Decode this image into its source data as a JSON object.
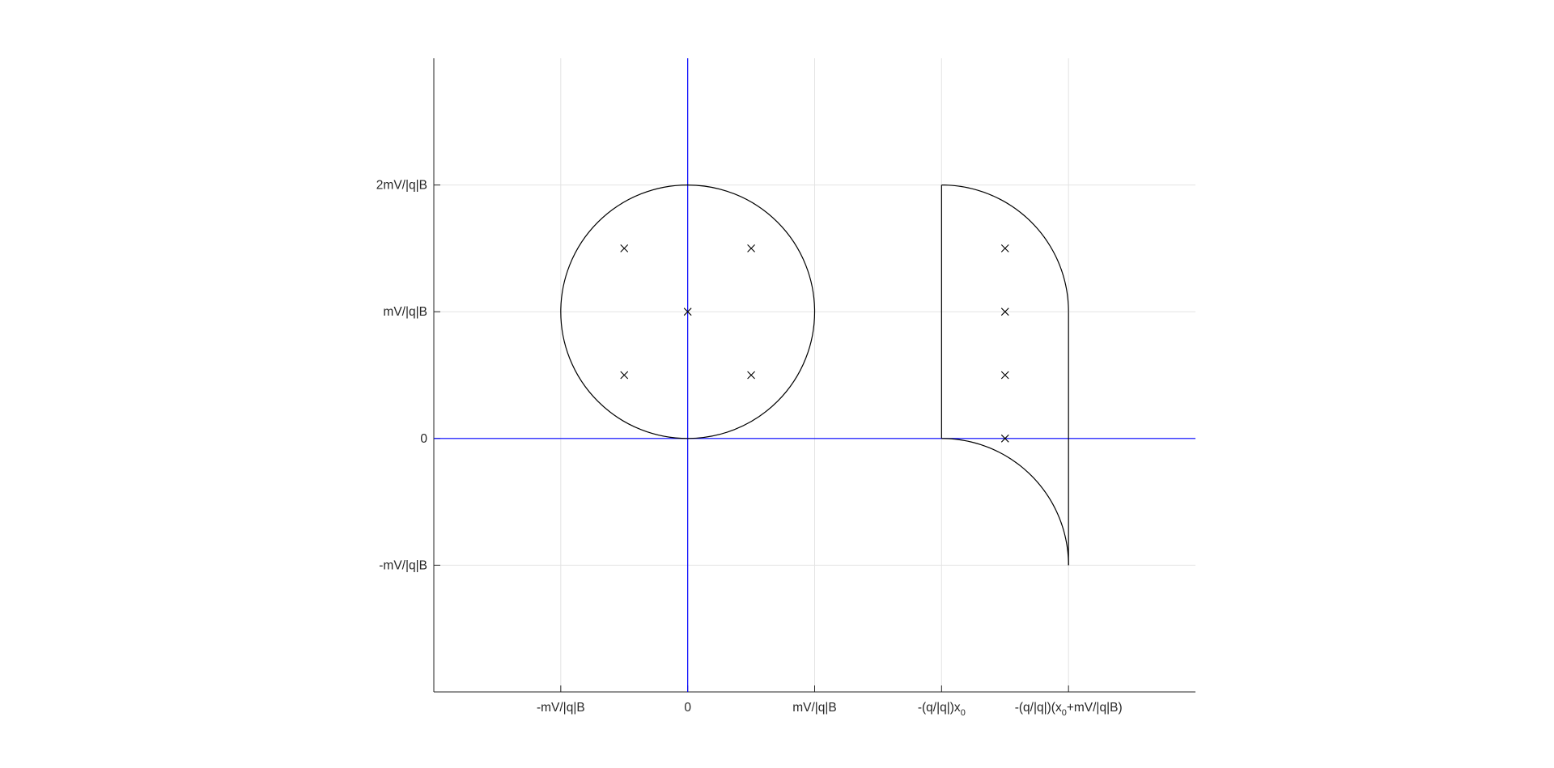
{
  "chart_data": {
    "type": "line",
    "title": "",
    "xlabel": "",
    "ylabel": "",
    "units": "mV/|q|B",
    "xlim": [
      -2,
      4
    ],
    "ylim": [
      -2,
      3
    ],
    "grid": true,
    "x_ticks": [
      {
        "value": -1,
        "label": "-mV/|q|B"
      },
      {
        "value": 0,
        "label": "0"
      },
      {
        "value": 1,
        "label": "mV/|q|B"
      },
      {
        "value": 2,
        "label": "-(q/|q|)x",
        "sub": "0",
        "tail": ""
      },
      {
        "value": 3,
        "label": "-(q/|q|)(x",
        "sub": "0",
        "tail": "+mV/|q|B)"
      }
    ],
    "y_ticks": [
      {
        "value": -1,
        "label": "-mV/|q|B"
      },
      {
        "value": 0,
        "label": "0"
      },
      {
        "value": 1,
        "label": "mV/|q|B"
      },
      {
        "value": 2,
        "label": "2mV/|q|B"
      }
    ],
    "axes_lines": {
      "color": "#0000ff",
      "x_axis_y": 0,
      "y_axis_x": 0
    },
    "shapes": [
      {
        "kind": "circle",
        "cx": 0,
        "cy": 1,
        "r": 1,
        "color": "#000000"
      },
      {
        "kind": "line",
        "points": [
          [
            2,
            0
          ],
          [
            2,
            2
          ]
        ],
        "color": "#000000"
      },
      {
        "kind": "arc",
        "cx": 2,
        "cy": 1,
        "r": 1,
        "from_deg": 90,
        "to_deg": 0,
        "color": "#000000"
      },
      {
        "kind": "line",
        "points": [
          [
            3,
            1
          ],
          [
            3,
            -1
          ]
        ],
        "color": "#000000"
      },
      {
        "kind": "arc",
        "cx": 2,
        "cy": -1,
        "r": 1,
        "from_deg": 90,
        "to_deg": 0,
        "color": "#000000"
      }
    ],
    "markers": {
      "symbol": "x",
      "color": "#000000",
      "points": [
        [
          -0.5,
          1.5
        ],
        [
          0.5,
          1.5
        ],
        [
          0,
          1
        ],
        [
          -0.5,
          0.5
        ],
        [
          0.5,
          0.5
        ],
        [
          2.5,
          1.5
        ],
        [
          2.5,
          1
        ],
        [
          2.5,
          0.5
        ],
        [
          2.5,
          0
        ]
      ]
    }
  }
}
